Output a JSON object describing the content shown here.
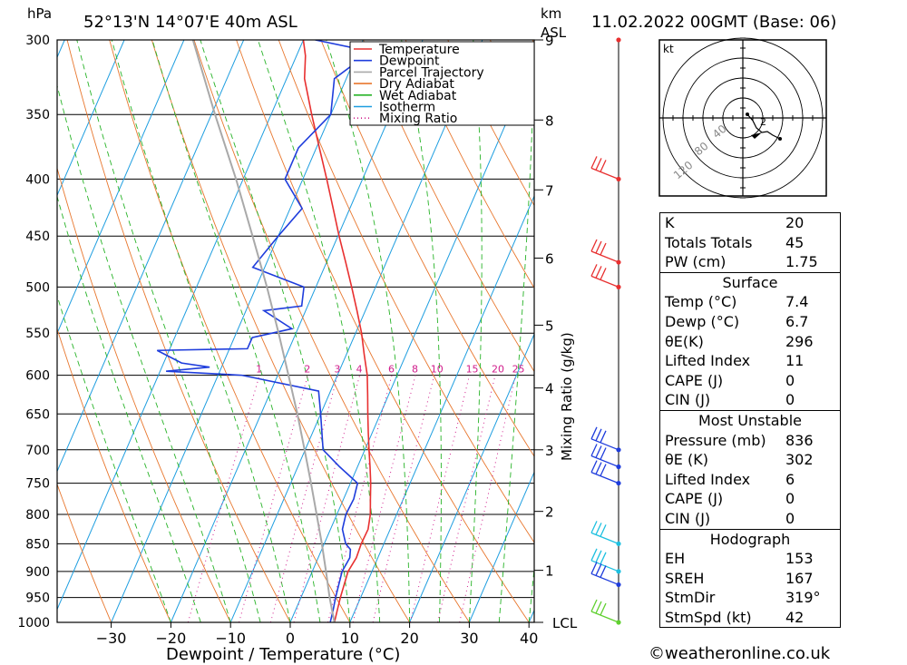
{
  "header": {
    "pressure_unit": "hPa",
    "location": "52°13'N 14°07'E 40m ASL",
    "height_unit": "km",
    "height_unit2": "ASL",
    "datetime": "11.02.2022 00GMT (Base: 06)"
  },
  "legend": [
    "Temperature",
    "Dewpoint",
    "Parcel Trajectory",
    "Dry Adiabat",
    "Wet Adiabat",
    "Isotherm",
    "Mixing Ratio"
  ],
  "colors": {
    "temperature": "#e83030",
    "dewpoint": "#1f3ddc",
    "parcel": "#a9a9a9",
    "dry_adiabat": "#e8772e",
    "wet_adiabat": "#27b327",
    "isotherm": "#1e9ee0",
    "mixing_ratio": "#d01c8b"
  },
  "chart_data": {
    "type": "line",
    "xlabel": "Dewpoint / Temperature (°C)",
    "ylabel": "hPa",
    "right_label": "Mixing Ratio (g/kg)",
    "x_ticks": [
      -30,
      -20,
      -10,
      0,
      10,
      20,
      30,
      40
    ],
    "p_ticks": [
      300,
      350,
      400,
      450,
      500,
      550,
      600,
      650,
      700,
      750,
      800,
      850,
      900,
      950,
      1000
    ],
    "km_ticks": [
      {
        "label": "9",
        "p": 300
      },
      {
        "label": "8",
        "p": 354
      },
      {
        "label": "7",
        "p": 409
      },
      {
        "label": "6",
        "p": 471
      },
      {
        "label": "5",
        "p": 541
      },
      {
        "label": "4",
        "p": 616
      },
      {
        "label": "3",
        "p": 700
      },
      {
        "label": "2",
        "p": 795
      },
      {
        "label": "1",
        "p": 898
      },
      {
        "label": "LCL",
        "p": 1000
      }
    ],
    "mixing_ratio_labels": [
      "1",
      "2",
      "3",
      "4",
      "6",
      "8",
      "10",
      "15",
      "20",
      "25"
    ],
    "series": [
      {
        "name": "Temperature",
        "points": [
          [
            1000,
            7.4
          ],
          [
            975,
            7.0
          ],
          [
            950,
            6.6
          ],
          [
            925,
            6.3
          ],
          [
            900,
            6.0
          ],
          [
            875,
            6.4
          ],
          [
            850,
            6.2
          ],
          [
            825,
            6.3
          ],
          [
            800,
            5.6
          ],
          [
            775,
            4.5
          ],
          [
            750,
            3.4
          ],
          [
            725,
            2.1
          ],
          [
            700,
            0.7
          ],
          [
            675,
            -0.7
          ],
          [
            650,
            -2.1
          ],
          [
            625,
            -3.5
          ],
          [
            600,
            -5.0
          ],
          [
            575,
            -7.0
          ],
          [
            550,
            -9.0
          ],
          [
            525,
            -11.4
          ],
          [
            500,
            -14.0
          ],
          [
            475,
            -16.8
          ],
          [
            450,
            -19.8
          ],
          [
            425,
            -22.8
          ],
          [
            400,
            -26.0
          ],
          [
            375,
            -29.5
          ],
          [
            350,
            -33.2
          ],
          [
            325,
            -37.0
          ],
          [
            310,
            -38.5
          ],
          [
            300,
            -40.0
          ]
        ]
      },
      {
        "name": "Dewpoint",
        "points": [
          [
            1000,
            6.7
          ],
          [
            975,
            6.3
          ],
          [
            950,
            5.8
          ],
          [
            925,
            5.4
          ],
          [
            900,
            5.0
          ],
          [
            875,
            5.3
          ],
          [
            860,
            4.8
          ],
          [
            850,
            3.6
          ],
          [
            825,
            2.0
          ],
          [
            800,
            1.5
          ],
          [
            775,
            1.7
          ],
          [
            750,
            1.2
          ],
          [
            725,
            -3.0
          ],
          [
            700,
            -7.0
          ],
          [
            650,
            -10.0
          ],
          [
            620,
            -12.0
          ],
          [
            600,
            -26.0
          ],
          [
            595,
            -39.0
          ],
          [
            590,
            -32.0
          ],
          [
            585,
            -37.0
          ],
          [
            570,
            -42.0
          ],
          [
            568,
            -27.0
          ],
          [
            555,
            -27.0
          ],
          [
            545,
            -21.0
          ],
          [
            525,
            -27.0
          ],
          [
            520,
            -21.0
          ],
          [
            500,
            -22.0
          ],
          [
            480,
            -32.0
          ],
          [
            450,
            -30.0
          ],
          [
            425,
            -28.0
          ],
          [
            400,
            -33.0
          ],
          [
            375,
            -33.0
          ],
          [
            350,
            -30.0
          ],
          [
            325,
            -32.0
          ],
          [
            312,
            -29.0
          ],
          [
            305,
            -31.0
          ],
          [
            300,
            -38.0
          ]
        ]
      },
      {
        "name": "Parcel Trajectory",
        "points": [
          [
            1000,
            7.4
          ],
          [
            950,
            4.8
          ],
          [
            900,
            2.3
          ],
          [
            850,
            -0.4
          ],
          [
            800,
            -3.4
          ],
          [
            750,
            -6.6
          ],
          [
            700,
            -10.1
          ],
          [
            650,
            -13.9
          ],
          [
            600,
            -18.2
          ],
          [
            550,
            -22.9
          ],
          [
            500,
            -28.2
          ],
          [
            450,
            -34.3
          ],
          [
            400,
            -41.2
          ],
          [
            350,
            -49.4
          ],
          [
            300,
            -58.5
          ]
        ]
      }
    ]
  },
  "hodograph": {
    "unit": "kt",
    "ring_labels": [
      "40",
      "80",
      "120"
    ],
    "storm_marker": "2"
  },
  "stats": {
    "indices": [
      {
        "label": "K",
        "value": "20"
      },
      {
        "label": "Totals Totals",
        "value": "45"
      },
      {
        "label": "PW (cm)",
        "value": "1.75"
      }
    ],
    "surface": {
      "title": "Surface",
      "rows": [
        {
          "label": "Temp (°C)",
          "value": "7.4"
        },
        {
          "label": "Dewp (°C)",
          "value": "6.7"
        },
        {
          "label": "θE(K)",
          "value": "296"
        },
        {
          "label": "Lifted Index",
          "value": "11"
        },
        {
          "label": "CAPE (J)",
          "value": "0"
        },
        {
          "label": "CIN (J)",
          "value": "0"
        }
      ]
    },
    "most_unstable": {
      "title": "Most Unstable",
      "rows": [
        {
          "label": "Pressure (mb)",
          "value": "836"
        },
        {
          "label": "θE (K)",
          "value": "302"
        },
        {
          "label": "Lifted Index",
          "value": "6"
        },
        {
          "label": "CAPE (J)",
          "value": "0"
        },
        {
          "label": "CIN (J)",
          "value": "0"
        }
      ]
    },
    "hodograph": {
      "title": "Hodograph",
      "rows": [
        {
          "label": "EH",
          "value": "153"
        },
        {
          "label": "SREH",
          "value": "167"
        },
        {
          "label": "StmDir",
          "value": "319°"
        },
        {
          "label": "StmSpd (kt)",
          "value": "42"
        }
      ]
    }
  },
  "copyright": "©weatheronline.co.uk"
}
